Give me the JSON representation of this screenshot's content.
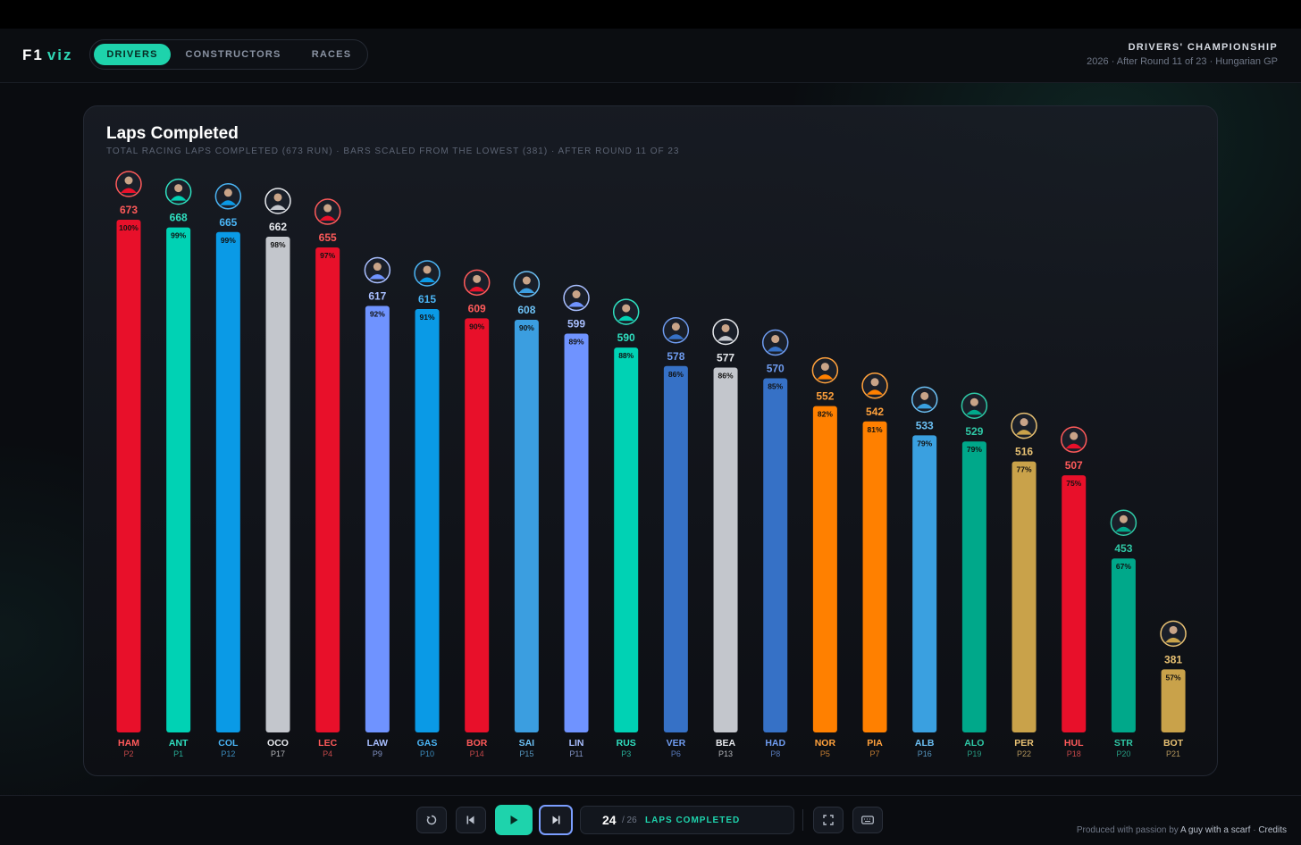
{
  "app": {
    "logo_main": "F1",
    "logo_accent": "viz"
  },
  "nav": {
    "tabs": [
      "DRIVERS",
      "CONSTRUCTORS",
      "RACES"
    ],
    "active": 0
  },
  "championship": {
    "title": "DRIVERS' CHAMPIONSHIP",
    "subtitle": "2026 · After Round 11 of 23 · Hungarian GP"
  },
  "chart_data": {
    "type": "bar",
    "title": "Laps Completed",
    "subtitle": "TOTAL RACING LAPS COMPLETED (673 RUN) · BARS SCALED FROM THE LOWEST (381) · AFTER ROUND 11 OF 23",
    "xlabel": "",
    "ylabel": "",
    "ylim": [
      0,
      673
    ],
    "grid": false,
    "categories": [
      "HAM",
      "ANT",
      "COL",
      "OCO",
      "LEC",
      "LAW",
      "GAS",
      "BOR",
      "SAI",
      "LIN",
      "RUS",
      "VER",
      "BEA",
      "HAD",
      "NOR",
      "PIA",
      "ALB",
      "ALO",
      "PER",
      "HUL",
      "STR",
      "BOT"
    ],
    "positions": [
      "P2",
      "P1",
      "P12",
      "P17",
      "P4",
      "P9",
      "P10",
      "P14",
      "P15",
      "P11",
      "P3",
      "P6",
      "P13",
      "P8",
      "P5",
      "P7",
      "P16",
      "P19",
      "P22",
      "P18",
      "P20",
      "P21"
    ],
    "values": [
      673,
      668,
      665,
      662,
      655,
      617,
      615,
      609,
      608,
      599,
      590,
      578,
      577,
      570,
      552,
      542,
      533,
      529,
      516,
      507,
      453,
      381
    ],
    "percent_labels": [
      "100%",
      "99%",
      "99%",
      "98%",
      "97%",
      "92%",
      "91%",
      "90%",
      "90%",
      "89%",
      "88%",
      "86%",
      "86%",
      "85%",
      "82%",
      "81%",
      "79%",
      "79%",
      "77%",
      "75%",
      "67%",
      "57%"
    ],
    "colors": [
      "#e8102a",
      "#00d2b4",
      "#0a9ae6",
      "#c3c6cc",
      "#e8102a",
      "#6f93ff",
      "#0a9ae6",
      "#e8102a",
      "#3b9ee0",
      "#6f93ff",
      "#00d2b4",
      "#3671c6",
      "#c3c6cc",
      "#3671c6",
      "#ff8000",
      "#ff8000",
      "#3aa0e0",
      "#00a88a",
      "#c9a24a",
      "#e8102a",
      "#00a88a",
      "#c9a24a"
    ],
    "label_colors": [
      "#ff5a5a",
      "#2fe0c0",
      "#4ab4f4",
      "#e6e8ec",
      "#ff5a5a",
      "#a9bfff",
      "#4ab4f4",
      "#ff5a5a",
      "#6cc0f4",
      "#a9bfff",
      "#2fe0c0",
      "#6f9cf0",
      "#e6e8ec",
      "#6f9cf0",
      "#ffa13c",
      "#ffa13c",
      "#6cc0f4",
      "#2fc9a6",
      "#e8c173",
      "#ff5a5a",
      "#2fc9a6",
      "#e8c173"
    ]
  },
  "player": {
    "lap_current": "24",
    "lap_total": "/ 26",
    "lap_label": "LAPS COMPLETED",
    "icons": [
      "restart-icon",
      "step-back-icon",
      "play-icon",
      "step-forward-icon",
      "fullscreen-icon",
      "keyboard-icon"
    ]
  },
  "credits": {
    "prefix": "Produced with passion by",
    "author": "A guy with a scarf",
    "sep": "·",
    "link": "Credits"
  }
}
